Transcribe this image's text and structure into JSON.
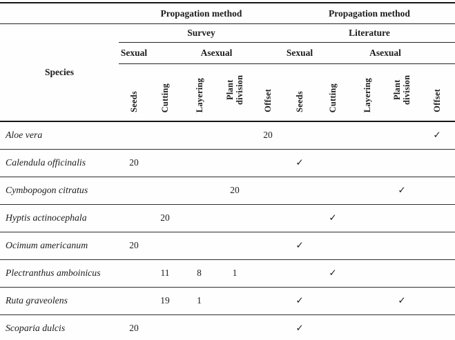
{
  "table": {
    "species_header": "Species",
    "group_header": "Propagation method",
    "groups": [
      {
        "name": "Survey",
        "sexual_label": "Sexual",
        "asexual_label": "Asexual"
      },
      {
        "name": "Literature",
        "sexual_label": "Sexual",
        "asexual_label": "Asexual"
      }
    ],
    "method_columns": [
      "Seeds",
      "Cutting",
      "Layering",
      "Plant division",
      "Offset"
    ],
    "check_symbol": "✓",
    "rows": [
      {
        "species": "Aloe vera",
        "survey": [
          "",
          "",
          "",
          "",
          "20"
        ],
        "literature": [
          "",
          "",
          "",
          "",
          "✓"
        ]
      },
      {
        "species": "Calendula officinalis",
        "survey": [
          "20",
          "",
          "",
          "",
          ""
        ],
        "literature": [
          "✓",
          "",
          "",
          "",
          ""
        ]
      },
      {
        "species": "Cymbopogon citratus",
        "survey": [
          "",
          "",
          "",
          "20",
          ""
        ],
        "literature": [
          "",
          "",
          "",
          "✓",
          ""
        ]
      },
      {
        "species": "Hyptis actinocephala",
        "survey": [
          "",
          "20",
          "",
          "",
          ""
        ],
        "literature": [
          "",
          "✓",
          "",
          "",
          ""
        ]
      },
      {
        "species": "Ocimum americanum",
        "survey": [
          "20",
          "",
          "",
          "",
          ""
        ],
        "literature": [
          "✓",
          "",
          "",
          "",
          ""
        ]
      },
      {
        "species": "Plectranthus amboinicus",
        "survey": [
          "",
          "11",
          "8",
          "1",
          ""
        ],
        "literature": [
          "",
          "✓",
          "",
          "",
          ""
        ]
      },
      {
        "species": "Ruta graveolens",
        "survey": [
          "",
          "19",
          "1",
          "",
          ""
        ],
        "literature": [
          "✓",
          "",
          "",
          "✓",
          ""
        ]
      },
      {
        "species": "Scoparia dulcis",
        "survey": [
          "20",
          "",
          "",
          "",
          ""
        ],
        "literature": [
          "✓",
          "",
          "",
          "",
          ""
        ]
      }
    ]
  }
}
